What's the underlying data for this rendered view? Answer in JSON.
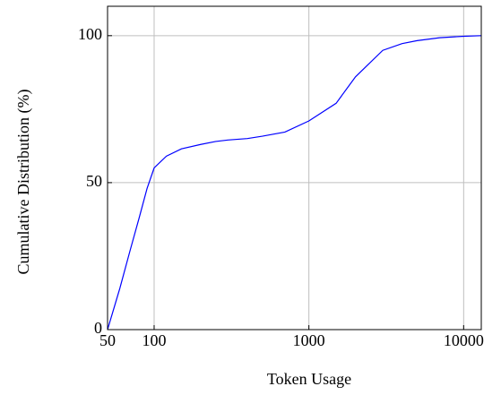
{
  "chart_data": {
    "type": "line",
    "x_label": "Token Usage",
    "y_label": "Cumulative Distribution (%)",
    "x": [
      50,
      60,
      70,
      80,
      90,
      100,
      120,
      150,
      200,
      250,
      300,
      400,
      500,
      700,
      1000,
      1500,
      2000,
      3000,
      4000,
      5000,
      7000,
      10000,
      13000
    ],
    "series": [
      {
        "color": "#0000ff",
        "values": [
          0,
          14,
          27,
          38,
          48,
          55,
          59,
          61.5,
          63,
          64,
          64.5,
          65,
          65.8,
          67.2,
          71,
          77,
          86,
          95,
          97.3,
          98.3,
          99.3,
          99.8,
          100
        ]
      }
    ],
    "xlim": [
      50,
      13000
    ],
    "ylim": [
      0,
      110
    ],
    "xticks": [
      50,
      100,
      1000,
      10000
    ],
    "yticks": [
      0,
      50,
      100
    ],
    "xscale": "log",
    "grid": true
  }
}
